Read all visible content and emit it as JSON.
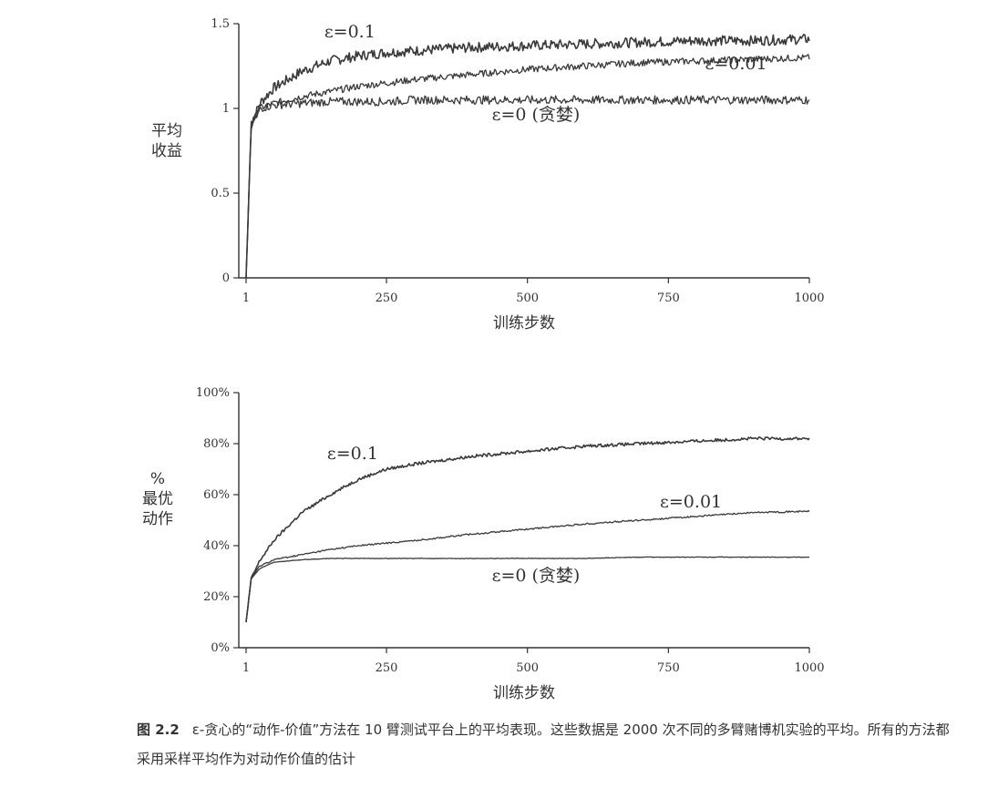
{
  "chart_data": [
    {
      "type": "line",
      "ylabel_lines": [
        "平均",
        "收益"
      ],
      "xlabel": "训练步数",
      "xlim": [
        1,
        1000
      ],
      "ylim": [
        0,
        1.5
      ],
      "x_ticks": [
        1,
        250,
        500,
        750,
        1000
      ],
      "x_tick_labels": [
        "1",
        "250",
        "500",
        "750",
        "1000"
      ],
      "y_ticks": [
        0,
        0.5,
        1,
        1.5
      ],
      "y_tick_labels": [
        "0",
        "0.5",
        "1",
        "1.5"
      ],
      "grid": false,
      "x": [
        1,
        10,
        25,
        50,
        100,
        150,
        200,
        250,
        300,
        400,
        500,
        600,
        700,
        800,
        900,
        1000
      ],
      "series": [
        {
          "name": "ε=0.1",
          "noise": 0.03,
          "values": [
            0.0,
            0.9,
            1.03,
            1.12,
            1.22,
            1.28,
            1.31,
            1.33,
            1.34,
            1.36,
            1.37,
            1.38,
            1.39,
            1.4,
            1.4,
            1.41
          ]
        },
        {
          "name": "ε=0.01",
          "noise": 0.02,
          "values": [
            0.0,
            0.9,
            1.0,
            1.03,
            1.07,
            1.1,
            1.13,
            1.15,
            1.17,
            1.2,
            1.23,
            1.25,
            1.27,
            1.28,
            1.29,
            1.3
          ]
        },
        {
          "name": "ε=0 (贪婪)",
          "noise": 0.025,
          "values": [
            0.0,
            0.9,
            1.0,
            1.02,
            1.03,
            1.04,
            1.04,
            1.04,
            1.05,
            1.05,
            1.05,
            1.05,
            1.05,
            1.05,
            1.05,
            1.05
          ]
        }
      ],
      "labels": [
        {
          "text": "ε=0.1",
          "at": [
            185,
            1.42
          ]
        },
        {
          "text": "ε=0.01",
          "at": [
            870,
            1.23
          ]
        },
        {
          "text": "ε=0 (贪婪)",
          "at": [
            515,
            0.93
          ]
        }
      ]
    },
    {
      "type": "line",
      "ylabel_lines": [
        "%",
        "最优",
        "动作"
      ],
      "xlabel": "训练步数",
      "xlim": [
        1,
        1000
      ],
      "ylim": [
        0,
        100
      ],
      "x_ticks": [
        1,
        250,
        500,
        750,
        1000
      ],
      "x_tick_labels": [
        "1",
        "250",
        "500",
        "750",
        "1000"
      ],
      "y_ticks": [
        0,
        20,
        40,
        60,
        80,
        100
      ],
      "y_tick_labels": [
        "0%",
        "20%",
        "40%",
        "60%",
        "80%",
        "100%"
      ],
      "grid": false,
      "x": [
        1,
        10,
        25,
        50,
        100,
        150,
        200,
        250,
        300,
        400,
        500,
        600,
        700,
        800,
        900,
        1000
      ],
      "series": [
        {
          "name": "ε=0.1",
          "noise": 0.6,
          "values": [
            10,
            27,
            34,
            42,
            53,
            60,
            66,
            70,
            72,
            75,
            77,
            79,
            80,
            81,
            82,
            82
          ]
        },
        {
          "name": "ε=0.01",
          "noise": 0.3,
          "values": [
            10,
            27,
            32,
            34.5,
            36.5,
            38.5,
            40,
            41,
            42,
            44.5,
            46.5,
            48.5,
            50,
            51.5,
            53,
            53.5
          ]
        },
        {
          "name": "ε=0 (贪婪)",
          "noise": 0.1,
          "values": [
            10,
            27,
            31,
            33.5,
            34.5,
            35,
            35,
            35,
            35,
            35,
            35,
            35,
            35.5,
            35.5,
            35.5,
            35.5
          ]
        }
      ],
      "labels": [
        {
          "text": "ε=0.1",
          "at": [
            190,
            74
          ]
        },
        {
          "text": "ε=0.01",
          "at": [
            790,
            55
          ]
        },
        {
          "text": "ε=0 (贪婪)",
          "at": [
            515,
            26
          ]
        }
      ]
    }
  ],
  "caption": {
    "figure_number": "图 2.2",
    "text": "ε-贪心的“动作-价值”方法在 10 臂测试平台上的平均表现。这些数据是 2000 次不同的多臂赌博机实验的平均。所有的方法都采用采样平均作为对动作价值的估计"
  },
  "colors": {
    "line": "#3a3a3a",
    "axis": "#333333",
    "text": "#333333"
  }
}
